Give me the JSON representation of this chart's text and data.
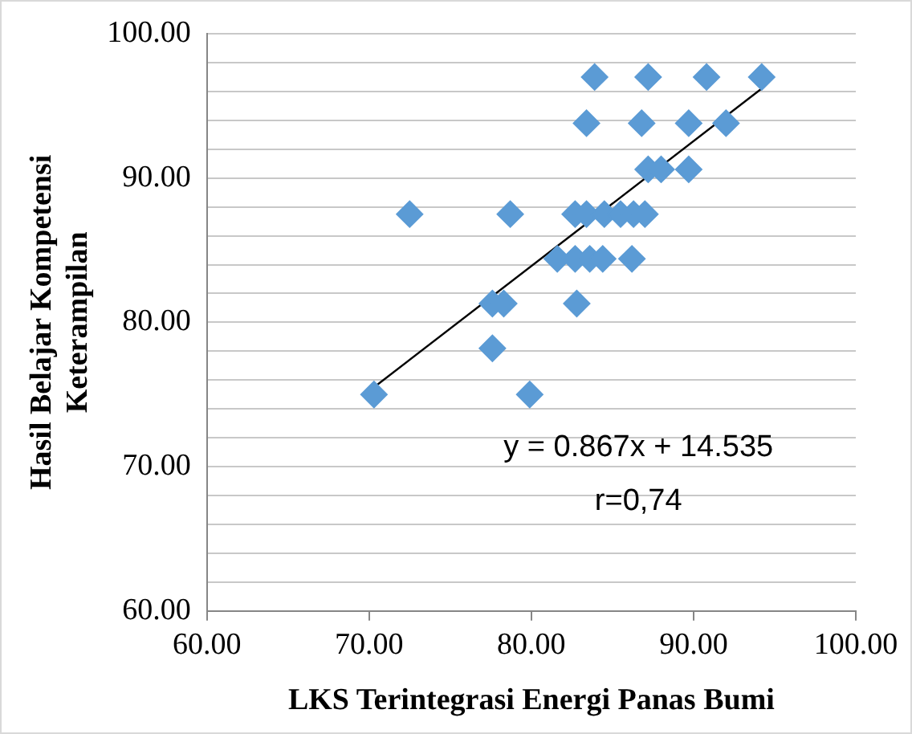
{
  "chart_data": {
    "type": "scatter",
    "xlabel": "LKS Terintegrasi Energi Panas Bumi",
    "ylabel": "Hasil Belajar Kompetensi\nKeterampilan",
    "series": [
      {
        "color": "#5b9bd5",
        "marker": "diamond",
        "x": [
          83.9,
          87.2,
          90.8,
          94.2,
          83.4,
          86.8,
          89.7,
          92.0,
          87.2,
          88.0,
          89.7,
          72.5,
          78.7,
          82.7,
          83.4,
          84.5,
          85.5,
          86.3,
          87.0,
          81.6,
          82.7,
          83.6,
          84.4,
          86.2,
          77.6,
          78.3,
          82.8,
          77.6,
          70.3,
          79.9
        ],
        "values": [
          97,
          97,
          97,
          97,
          93.8,
          93.8,
          93.8,
          93.8,
          90.6,
          90.6,
          90.6,
          87.5,
          87.5,
          87.5,
          87.5,
          87.5,
          87.5,
          87.5,
          87.5,
          84.4,
          84.4,
          84.4,
          84.4,
          84.4,
          81.3,
          81.3,
          81.3,
          78.2,
          75,
          75
        ]
      },
      {
        "type": "line",
        "color": "#000000",
        "marker": "none",
        "x": [
          70.3,
          94.2
        ],
        "values": [
          75.5,
          96.2
        ]
      }
    ],
    "xlim": [
      60,
      100
    ],
    "ylim": [
      60,
      100
    ],
    "xticks": [
      {
        "value": 60,
        "label": "60.00"
      },
      {
        "value": 70,
        "label": "70.00"
      },
      {
        "value": 80,
        "label": "80.00"
      },
      {
        "value": 90,
        "label": "90.00"
      },
      {
        "value": 100,
        "label": "100.00"
      }
    ],
    "yticks": [
      {
        "value": 60,
        "label": "60.00"
      },
      {
        "value": 62,
        "label": null
      },
      {
        "value": 64,
        "label": null
      },
      {
        "value": 66,
        "label": null
      },
      {
        "value": 68,
        "label": null
      },
      {
        "value": 70,
        "label": "70.00"
      },
      {
        "value": 72,
        "label": null
      },
      {
        "value": 74,
        "label": null
      },
      {
        "value": 76,
        "label": null
      },
      {
        "value": 78,
        "label": null
      },
      {
        "value": 80,
        "label": "80.00"
      },
      {
        "value": 82,
        "label": null
      },
      {
        "value": 84,
        "label": null
      },
      {
        "value": 86,
        "label": null
      },
      {
        "value": 88,
        "label": null
      },
      {
        "value": 90,
        "label": "90.00"
      },
      {
        "value": 92,
        "label": null
      },
      {
        "value": 94,
        "label": null
      },
      {
        "value": 96,
        "label": null
      },
      {
        "value": 98,
        "label": null
      },
      {
        "value": 100,
        "label": "100.00"
      }
    ],
    "grid": "y",
    "legend": false,
    "annotations": [
      "y = 0.867x + 14.535",
      "r=0,74"
    ]
  }
}
